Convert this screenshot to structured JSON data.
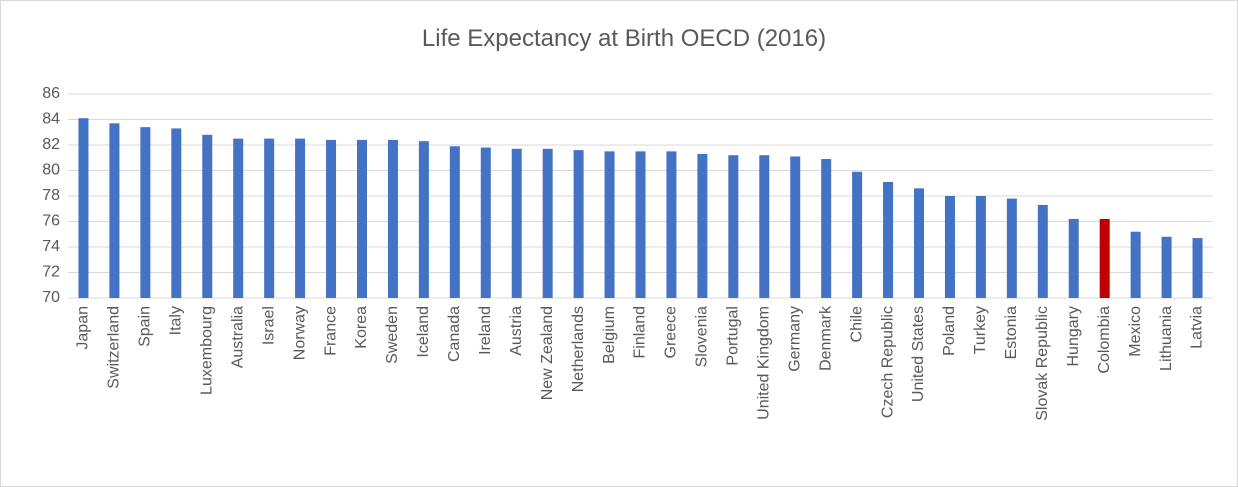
{
  "chart_data": {
    "type": "bar",
    "title": "Life Expectancy at Birth OECD (2016)",
    "categories": [
      "Japan",
      "Switzerland",
      "Spain",
      "Italy",
      "Luxembourg",
      "Australia",
      "Israel",
      "Norway",
      "France",
      "Korea",
      "Sweden",
      "Iceland",
      "Canada",
      "Ireland",
      "Austria",
      "New Zealand",
      "Netherlands",
      "Belgium",
      "Finland",
      "Greece",
      "Slovenia",
      "Portugal",
      "United Kingdom",
      "Germany",
      "Denmark",
      "Chile",
      "Czech Republic",
      "United States",
      "Poland",
      "Turkey",
      "Estonia",
      "Slovak Republic",
      "Hungary",
      "Colombia",
      "Mexico",
      "Lithuania",
      "Latvia"
    ],
    "values": [
      84.1,
      83.7,
      83.4,
      83.3,
      82.8,
      82.5,
      82.5,
      82.5,
      82.4,
      82.4,
      82.4,
      82.3,
      81.9,
      81.8,
      81.7,
      81.7,
      81.6,
      81.5,
      81.5,
      81.5,
      81.3,
      81.2,
      81.2,
      81.1,
      80.9,
      79.9,
      79.1,
      78.6,
      78.0,
      78.0,
      77.8,
      77.3,
      76.2,
      76.2,
      75.2,
      74.8,
      74.7
    ],
    "colors": [
      "#4472c4",
      "#4472c4",
      "#4472c4",
      "#4472c4",
      "#4472c4",
      "#4472c4",
      "#4472c4",
      "#4472c4",
      "#4472c4",
      "#4472c4",
      "#4472c4",
      "#4472c4",
      "#4472c4",
      "#4472c4",
      "#4472c4",
      "#4472c4",
      "#4472c4",
      "#4472c4",
      "#4472c4",
      "#4472c4",
      "#4472c4",
      "#4472c4",
      "#4472c4",
      "#4472c4",
      "#4472c4",
      "#4472c4",
      "#4472c4",
      "#4472c4",
      "#4472c4",
      "#4472c4",
      "#4472c4",
      "#4472c4",
      "#4472c4",
      "#c00000",
      "#4472c4",
      "#4472c4",
      "#4472c4"
    ],
    "ylim": [
      70,
      86
    ],
    "yticks": [
      70,
      72,
      74,
      76,
      78,
      80,
      82,
      84,
      86
    ],
    "grid": true
  }
}
